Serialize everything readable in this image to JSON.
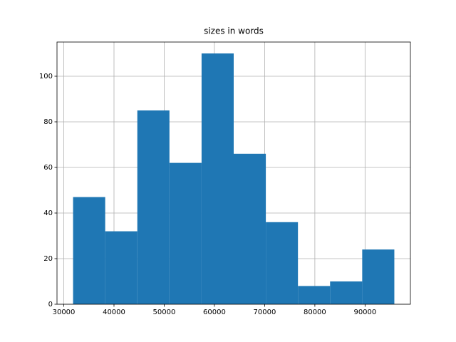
{
  "chart_data": {
    "type": "histogram",
    "title": "sizes in words",
    "bins": [
      31850,
      38248,
      44646,
      51044,
      57442,
      63840,
      70238,
      76636,
      83034,
      89432,
      95830
    ],
    "values": [
      47,
      32,
      85,
      62,
      110,
      66,
      36,
      8,
      10,
      24
    ],
    "color": "#1f77b4",
    "xlim": [
      28650,
      99030
    ],
    "xticks": [
      30000,
      40000,
      50000,
      60000,
      70000,
      80000,
      90000
    ],
    "ylim": [
      0,
      115
    ],
    "yticks": [
      0,
      20,
      40,
      60,
      80,
      100
    ],
    "grid": true
  }
}
